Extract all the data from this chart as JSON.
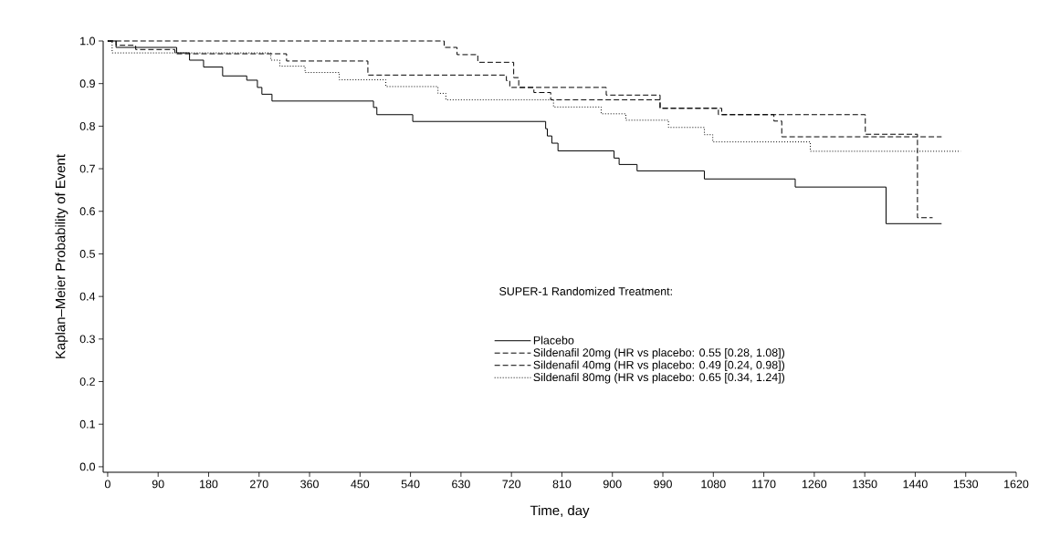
{
  "chart_data": {
    "type": "step",
    "xlabel": "Time, day",
    "ylabel": "Kaplan–Meier Probability of Event",
    "legend_title": "SUPER-1 Randomized Treatment:",
    "xlim": [
      -8,
      1620
    ],
    "ylim": [
      -0.013,
      1.0
    ],
    "xticks": [
      0,
      90,
      180,
      270,
      360,
      450,
      540,
      630,
      720,
      810,
      900,
      990,
      1080,
      1170,
      1260,
      1350,
      1440,
      1530,
      1620
    ],
    "yticks": [
      {
        "value": 0,
        "label": "0.0"
      },
      {
        "value": 0.1,
        "label": "0.1"
      },
      {
        "value": 0.2,
        "label": "0.2"
      },
      {
        "value": 0.3,
        "label": "0.3"
      },
      {
        "value": 0.4,
        "label": "0.4"
      },
      {
        "value": 0.5,
        "label": "0.5"
      },
      {
        "value": 0.6,
        "label": "0.6"
      },
      {
        "value": 0.7,
        "label": "0.7"
      },
      {
        "value": 0.8,
        "label": "0.8"
      },
      {
        "value": 0.9,
        "label": "0.9"
      },
      {
        "value": 1.0,
        "label": "1.0"
      }
    ],
    "grid": false,
    "legend": "bottom right",
    "marker": "none",
    "series": [
      {
        "name": "Placebo",
        "color": "#000000",
        "line_style": "solid",
        "x": [
          0,
          15,
          123,
          146,
          171,
          205,
          248,
          267,
          275,
          293,
          474,
          480,
          544,
          781,
          784,
          792,
          803,
          903,
          912,
          944,
          1064,
          1226,
          1388,
          1487
        ],
        "values": [
          1.0,
          0.985,
          0.972,
          0.955,
          0.939,
          0.918,
          0.908,
          0.891,
          0.875,
          0.859,
          0.844,
          0.827,
          0.811,
          0.794,
          0.777,
          0.76,
          0.742,
          0.725,
          0.71,
          0.695,
          0.676,
          0.657,
          0.571,
          0.571
        ]
      },
      {
        "name": "Sildenafil 20mg (HR vs placebo: 0.55 [0.28, 1.08])",
        "color": "#000000",
        "line_style": "dashed",
        "x": [
          0,
          15,
          50,
          120,
          319,
          464,
          711,
          717,
          889,
          985,
          1089,
          1188,
          1202,
          1487
        ],
        "values": [
          1.0,
          0.99,
          0.98,
          0.97,
          0.953,
          0.92,
          0.907,
          0.891,
          0.873,
          0.842,
          0.827,
          0.812,
          0.775,
          0.775
        ]
      },
      {
        "name": "Sildenafil 40mg (HR vs placebo: 0.49 [0.24, 0.98])",
        "color": "#000000",
        "line_style": "dashed",
        "x": [
          0,
          600,
          623,
          660,
          724,
          733,
          760,
          790,
          985,
          1095,
          1351,
          1444,
          1471
        ],
        "values": [
          1.0,
          0.985,
          0.968,
          0.95,
          0.914,
          0.891,
          0.879,
          0.862,
          0.842,
          0.827,
          0.781,
          0.585,
          0.585
        ]
      },
      {
        "name": "Sildenafil 80mg (HR vs placebo: 0.65 [0.34, 1.24])",
        "color": "#000000",
        "line_style": "dotted",
        "x": [
          0,
          8,
          291,
          307,
          352,
          413,
          496,
          589,
          603,
          795,
          880,
          924,
          1000,
          1064,
          1079,
          1253,
          1521
        ],
        "values": [
          1.0,
          0.972,
          0.955,
          0.941,
          0.926,
          0.909,
          0.893,
          0.877,
          0.862,
          0.845,
          0.829,
          0.814,
          0.797,
          0.78,
          0.763,
          0.741,
          0.741
        ]
      }
    ]
  }
}
